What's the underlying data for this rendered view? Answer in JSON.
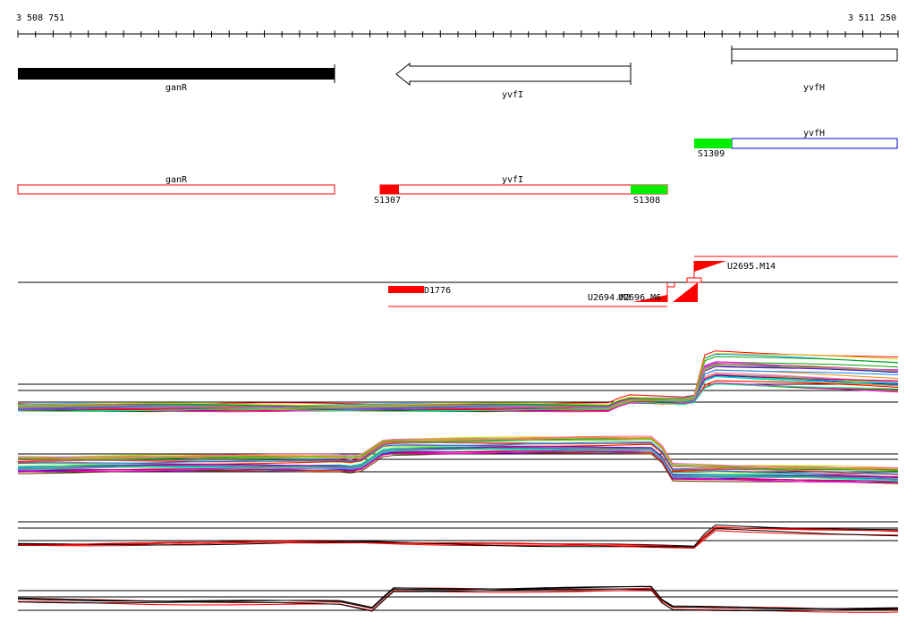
{
  "ruler": {
    "start_label": "3 508 751",
    "end_label": "3 511 250"
  },
  "genes": [
    {
      "name": "ganR"
    },
    {
      "name": "yvfI"
    },
    {
      "name": "yvfH"
    }
  ],
  "operons": {
    "yvfH": {
      "name": "yvfH",
      "site": "S1309"
    },
    "ganR": {
      "name": "ganR"
    },
    "yvfI": {
      "name": "yvfI",
      "site_left": "S1307",
      "site_right": "S1308"
    }
  },
  "features": {
    "d1776": "D1776",
    "u2695": "U2695.M14",
    "u2694": "U2694.M2",
    "u2696": "U2696.M6"
  },
  "colors": {
    "gene_fill": "#000000",
    "operon_border": "#ff0000",
    "operon_border_blue": "#0000cc",
    "site_red": "#ff0000",
    "site_green": "#00ee00",
    "feature_red": "#ff0000"
  }
}
